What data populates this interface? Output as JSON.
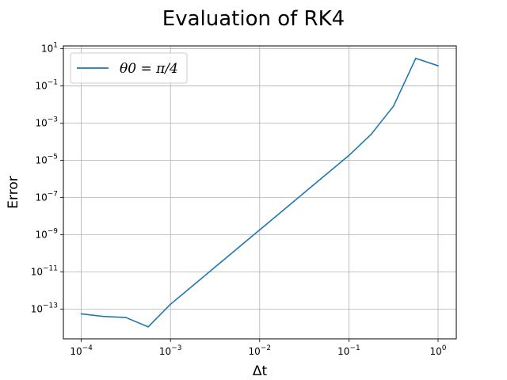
{
  "chart_data": {
    "type": "line",
    "title": "Evaluation of RK4",
    "xlabel": "Δt",
    "ylabel": "Error",
    "xscale": "log",
    "yscale": "log",
    "xlim": [
      6.3e-05,
      1.6
    ],
    "ylim": [
      2.5e-15,
      14.0
    ],
    "grid": true,
    "legend_position": "top-left",
    "x_ticks": [
      {
        "base": "10",
        "exp": "−4",
        "value": 0.0001
      },
      {
        "base": "10",
        "exp": "−3",
        "value": 0.001
      },
      {
        "base": "10",
        "exp": "−2",
        "value": 0.01
      },
      {
        "base": "10",
        "exp": "−1",
        "value": 0.1
      },
      {
        "base": "10",
        "exp": "0",
        "value": 1
      }
    ],
    "y_ticks": [
      {
        "base": "10",
        "exp": "1",
        "value": 10
      },
      {
        "base": "10",
        "exp": "−1",
        "value": 0.1
      },
      {
        "base": "10",
        "exp": "−3",
        "value": 0.001
      },
      {
        "base": "10",
        "exp": "−5",
        "value": 1e-05
      },
      {
        "base": "10",
        "exp": "−7",
        "value": 1e-07
      },
      {
        "base": "10",
        "exp": "−9",
        "value": 1e-09
      },
      {
        "base": "10",
        "exp": "−11",
        "value": 1e-11
      },
      {
        "base": "10",
        "exp": "−13",
        "value": 1e-13
      }
    ],
    "series": [
      {
        "name": "θ0 = π/4",
        "color": "#1f77b4",
        "x": [
          0.0001,
          0.000178,
          0.000316,
          0.000562,
          0.001,
          0.00178,
          0.00316,
          0.00562,
          0.01,
          0.0178,
          0.0316,
          0.0562,
          0.1,
          0.178,
          0.316,
          0.562,
          1.0
        ],
        "y": [
          5.5e-14,
          4e-14,
          3.5e-14,
          1.1e-14,
          1.8e-13,
          1.8e-12,
          1.8e-11,
          1.8e-10,
          1.8e-09,
          1.8e-08,
          1.8e-07,
          1.8e-06,
          1.8e-05,
          0.00025,
          0.008,
          3.0,
          1.2
        ]
      }
    ]
  }
}
